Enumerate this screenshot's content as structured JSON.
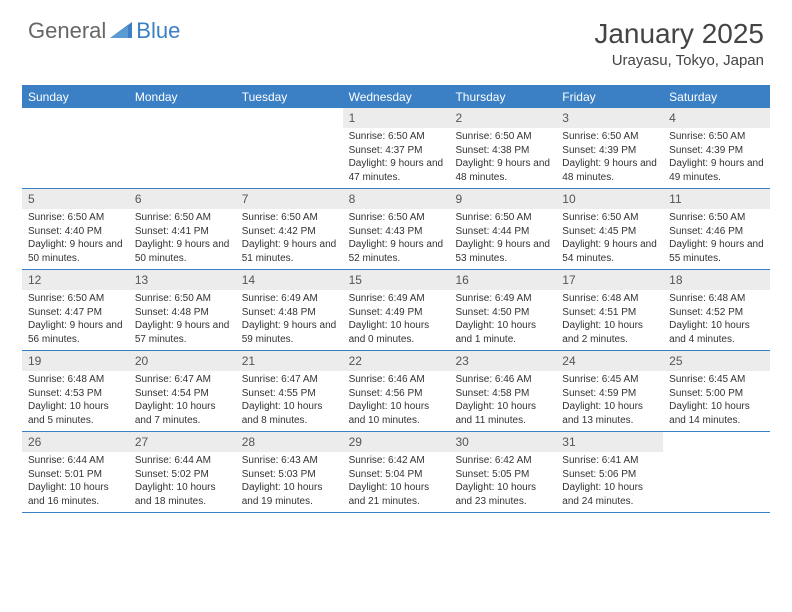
{
  "logo": {
    "text1": "General",
    "text2": "Blue"
  },
  "title": "January 2025",
  "location": "Urayasu, Tokyo, Japan",
  "colors": {
    "accent": "#3b7fc4",
    "dayNumBg": "#ececec",
    "textMuted": "#555",
    "text": "#333",
    "logoGray": "#666"
  },
  "dayHeaders": [
    "Sunday",
    "Monday",
    "Tuesday",
    "Wednesday",
    "Thursday",
    "Friday",
    "Saturday"
  ],
  "weeks": [
    [
      {
        "num": "",
        "lines": []
      },
      {
        "num": "",
        "lines": []
      },
      {
        "num": "",
        "lines": []
      },
      {
        "num": "1",
        "lines": [
          "Sunrise: 6:50 AM",
          "Sunset: 4:37 PM",
          "Daylight: 9 hours and 47 minutes."
        ]
      },
      {
        "num": "2",
        "lines": [
          "Sunrise: 6:50 AM",
          "Sunset: 4:38 PM",
          "Daylight: 9 hours and 48 minutes."
        ]
      },
      {
        "num": "3",
        "lines": [
          "Sunrise: 6:50 AM",
          "Sunset: 4:39 PM",
          "Daylight: 9 hours and 48 minutes."
        ]
      },
      {
        "num": "4",
        "lines": [
          "Sunrise: 6:50 AM",
          "Sunset: 4:39 PM",
          "Daylight: 9 hours and 49 minutes."
        ]
      }
    ],
    [
      {
        "num": "5",
        "lines": [
          "Sunrise: 6:50 AM",
          "Sunset: 4:40 PM",
          "Daylight: 9 hours and 50 minutes."
        ]
      },
      {
        "num": "6",
        "lines": [
          "Sunrise: 6:50 AM",
          "Sunset: 4:41 PM",
          "Daylight: 9 hours and 50 minutes."
        ]
      },
      {
        "num": "7",
        "lines": [
          "Sunrise: 6:50 AM",
          "Sunset: 4:42 PM",
          "Daylight: 9 hours and 51 minutes."
        ]
      },
      {
        "num": "8",
        "lines": [
          "Sunrise: 6:50 AM",
          "Sunset: 4:43 PM",
          "Daylight: 9 hours and 52 minutes."
        ]
      },
      {
        "num": "9",
        "lines": [
          "Sunrise: 6:50 AM",
          "Sunset: 4:44 PM",
          "Daylight: 9 hours and 53 minutes."
        ]
      },
      {
        "num": "10",
        "lines": [
          "Sunrise: 6:50 AM",
          "Sunset: 4:45 PM",
          "Daylight: 9 hours and 54 minutes."
        ]
      },
      {
        "num": "11",
        "lines": [
          "Sunrise: 6:50 AM",
          "Sunset: 4:46 PM",
          "Daylight: 9 hours and 55 minutes."
        ]
      }
    ],
    [
      {
        "num": "12",
        "lines": [
          "Sunrise: 6:50 AM",
          "Sunset: 4:47 PM",
          "Daylight: 9 hours and 56 minutes."
        ]
      },
      {
        "num": "13",
        "lines": [
          "Sunrise: 6:50 AM",
          "Sunset: 4:48 PM",
          "Daylight: 9 hours and 57 minutes."
        ]
      },
      {
        "num": "14",
        "lines": [
          "Sunrise: 6:49 AM",
          "Sunset: 4:48 PM",
          "Daylight: 9 hours and 59 minutes."
        ]
      },
      {
        "num": "15",
        "lines": [
          "Sunrise: 6:49 AM",
          "Sunset: 4:49 PM",
          "Daylight: 10 hours and 0 minutes."
        ]
      },
      {
        "num": "16",
        "lines": [
          "Sunrise: 6:49 AM",
          "Sunset: 4:50 PM",
          "Daylight: 10 hours and 1 minute."
        ]
      },
      {
        "num": "17",
        "lines": [
          "Sunrise: 6:48 AM",
          "Sunset: 4:51 PM",
          "Daylight: 10 hours and 2 minutes."
        ]
      },
      {
        "num": "18",
        "lines": [
          "Sunrise: 6:48 AM",
          "Sunset: 4:52 PM",
          "Daylight: 10 hours and 4 minutes."
        ]
      }
    ],
    [
      {
        "num": "19",
        "lines": [
          "Sunrise: 6:48 AM",
          "Sunset: 4:53 PM",
          "Daylight: 10 hours and 5 minutes."
        ]
      },
      {
        "num": "20",
        "lines": [
          "Sunrise: 6:47 AM",
          "Sunset: 4:54 PM",
          "Daylight: 10 hours and 7 minutes."
        ]
      },
      {
        "num": "21",
        "lines": [
          "Sunrise: 6:47 AM",
          "Sunset: 4:55 PM",
          "Daylight: 10 hours and 8 minutes."
        ]
      },
      {
        "num": "22",
        "lines": [
          "Sunrise: 6:46 AM",
          "Sunset: 4:56 PM",
          "Daylight: 10 hours and 10 minutes."
        ]
      },
      {
        "num": "23",
        "lines": [
          "Sunrise: 6:46 AM",
          "Sunset: 4:58 PM",
          "Daylight: 10 hours and 11 minutes."
        ]
      },
      {
        "num": "24",
        "lines": [
          "Sunrise: 6:45 AM",
          "Sunset: 4:59 PM",
          "Daylight: 10 hours and 13 minutes."
        ]
      },
      {
        "num": "25",
        "lines": [
          "Sunrise: 6:45 AM",
          "Sunset: 5:00 PM",
          "Daylight: 10 hours and 14 minutes."
        ]
      }
    ],
    [
      {
        "num": "26",
        "lines": [
          "Sunrise: 6:44 AM",
          "Sunset: 5:01 PM",
          "Daylight: 10 hours and 16 minutes."
        ]
      },
      {
        "num": "27",
        "lines": [
          "Sunrise: 6:44 AM",
          "Sunset: 5:02 PM",
          "Daylight: 10 hours and 18 minutes."
        ]
      },
      {
        "num": "28",
        "lines": [
          "Sunrise: 6:43 AM",
          "Sunset: 5:03 PM",
          "Daylight: 10 hours and 19 minutes."
        ]
      },
      {
        "num": "29",
        "lines": [
          "Sunrise: 6:42 AM",
          "Sunset: 5:04 PM",
          "Daylight: 10 hours and 21 minutes."
        ]
      },
      {
        "num": "30",
        "lines": [
          "Sunrise: 6:42 AM",
          "Sunset: 5:05 PM",
          "Daylight: 10 hours and 23 minutes."
        ]
      },
      {
        "num": "31",
        "lines": [
          "Sunrise: 6:41 AM",
          "Sunset: 5:06 PM",
          "Daylight: 10 hours and 24 minutes."
        ]
      },
      {
        "num": "",
        "lines": []
      }
    ]
  ]
}
